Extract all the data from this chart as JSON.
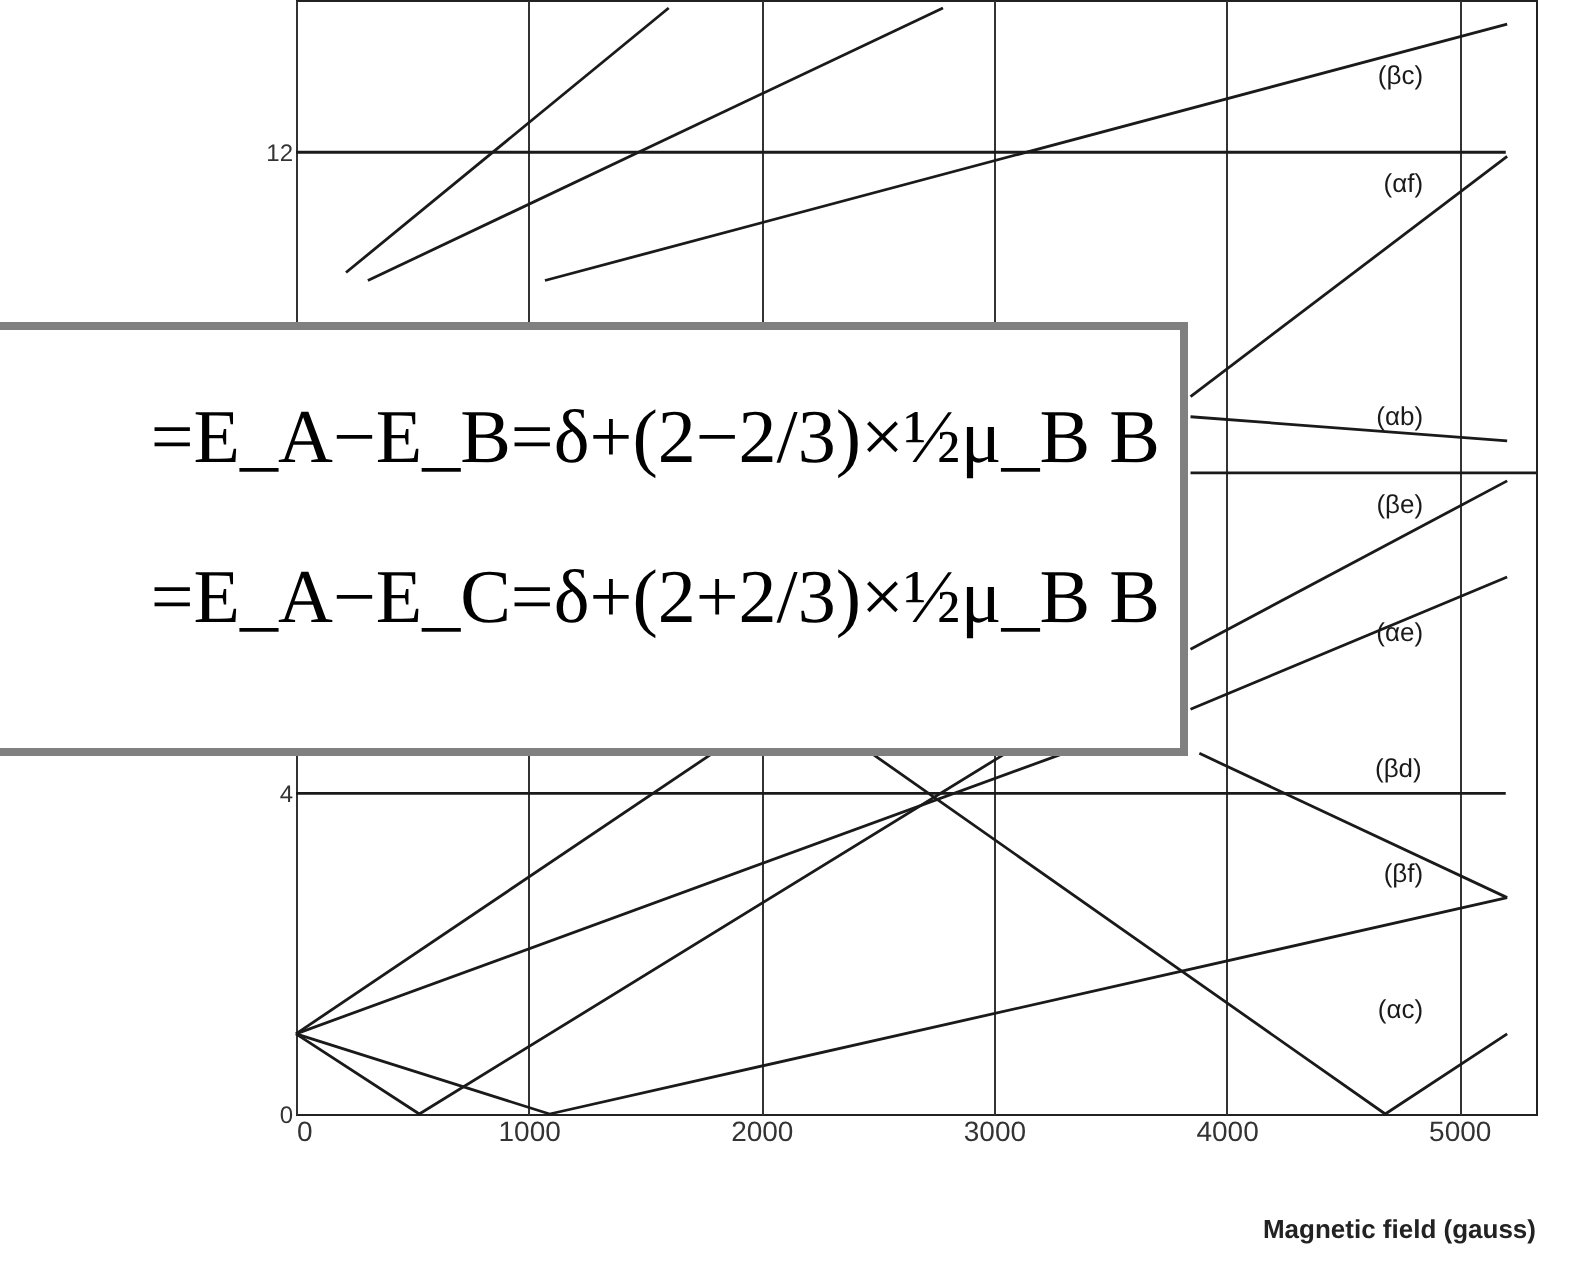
{
  "chart_data": {
    "type": "line",
    "xlabel": "Magnetic field (gauss)",
    "xlim": [
      0,
      5330
    ],
    "ylim": [
      0,
      13.9
    ],
    "xticks": [
      0,
      1000,
      2000,
      3000,
      4000,
      5000
    ],
    "yticks": [
      0,
      4,
      12
    ],
    "grid": "x",
    "marker": "none",
    "line_style": "solid",
    "series": [
      {
        "color": "#1a1a1a",
        "x": [
          0,
          5200
        ],
        "values": [
          12,
          12
        ]
      },
      {
        "color": "#1a1a1a",
        "x": [
          3845,
          5330
        ],
        "values": [
          8,
          8
        ]
      },
      {
        "name": "(βd)",
        "color": "#1a1a1a",
        "x": [
          0,
          5200
        ],
        "values": [
          4,
          4
        ]
      },
      {
        "color": "#1a1a1a",
        "x": [
          215,
          1602
        ],
        "values": [
          10.5,
          13.8
        ]
      },
      {
        "color": "#1a1a1a",
        "x": [
          309,
          2781
        ],
        "values": [
          10.4,
          13.8
        ]
      },
      {
        "name": "(βc)",
        "color": "#1a1a1a",
        "x": [
          1070,
          5206
        ],
        "values": [
          10.4,
          13.6
        ]
      },
      {
        "name": "(αf)",
        "color": "#1a1a1a",
        "x": [
          3845,
          5206
        ],
        "values": [
          8.95,
          11.95
        ]
      },
      {
        "name": "(αb)",
        "color": "#1a1a1a",
        "x": [
          3845,
          5206
        ],
        "values": [
          8.7,
          8.4
        ]
      },
      {
        "name": "(βe)",
        "color": "#1a1a1a",
        "x": [
          3845,
          5206
        ],
        "values": [
          5.8,
          7.9
        ]
      },
      {
        "name": "(αe)",
        "color": "#1a1a1a",
        "x": [
          3845,
          5206
        ],
        "values": [
          5.05,
          6.7
        ]
      },
      {
        "color": "#1a1a1a",
        "x": [
          0,
          1790
        ],
        "values": [
          1,
          4.5
        ]
      },
      {
        "color": "#1a1a1a",
        "x": [
          0,
          3300
        ],
        "values": [
          1,
          4.5
        ]
      },
      {
        "color": "#1a1a1a",
        "x": [
          0,
          530,
          3050
        ],
        "values": [
          1,
          0,
          4.5
        ]
      },
      {
        "color": "#1a1a1a",
        "x": [
          0,
          1090,
          5206
        ],
        "values": [
          1,
          0,
          2.7
        ]
      },
      {
        "name": "(αc)",
        "color": "#1a1a1a",
        "x": [
          2474,
          4682,
          5206
        ],
        "values": [
          4.5,
          0,
          1.0
        ]
      },
      {
        "name": "(βf)",
        "color": "#1a1a1a",
        "x": [
          3883,
          5206
        ],
        "values": [
          4.5,
          2.7
        ]
      }
    ],
    "annotations": [
      "=E_A−E_B=δ+(2−2/3)×½μ_B B",
      "=E_A−E_C=δ+(2+2/3)×½μ_B B"
    ]
  }
}
